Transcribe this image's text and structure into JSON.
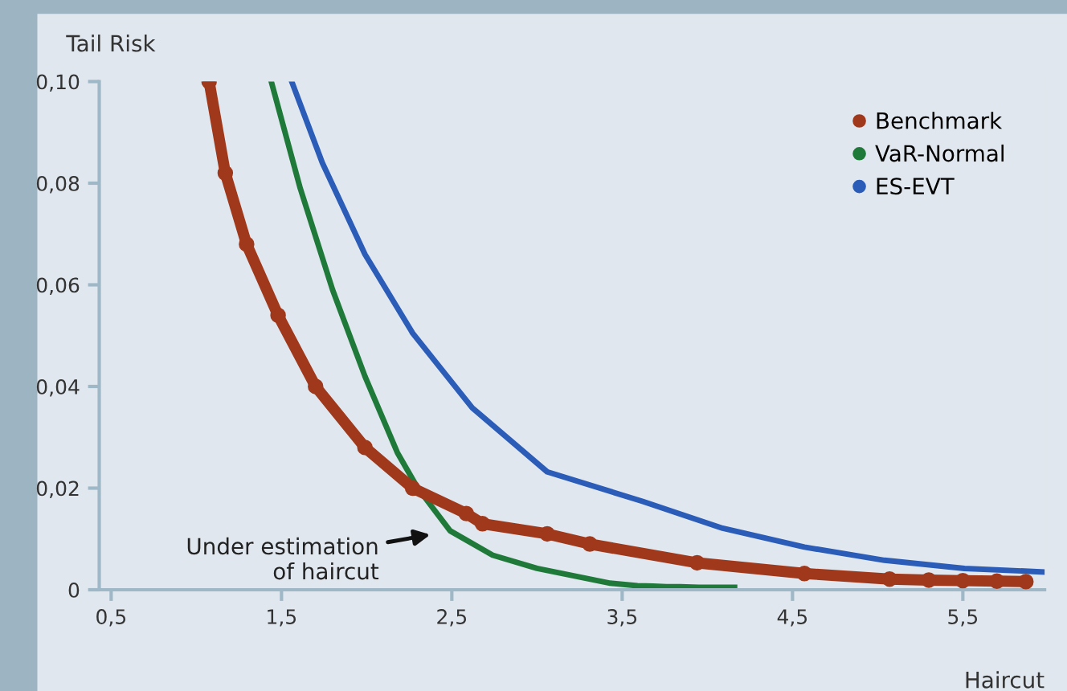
{
  "chart_data": {
    "type": "line",
    "xlabel": "Haircut",
    "ylabel": "Tail Risk",
    "xlim": [
      0.43,
      5.98
    ],
    "ylim": [
      0,
      0.1
    ],
    "xticks": [
      {
        "value": 0.5,
        "label": "0,5"
      },
      {
        "value": 1.5,
        "label": "1,5"
      },
      {
        "value": 2.5,
        "label": "2,5"
      },
      {
        "value": 3.5,
        "label": "3,5"
      },
      {
        "value": 4.5,
        "label": "4,5"
      },
      {
        "value": 5.5,
        "label": "5,5"
      }
    ],
    "yticks": [
      0,
      {
        "value": 0.02,
        "label": "0,02"
      },
      {
        "value": 0.04,
        "label": "0,04"
      },
      {
        "value": 0.06,
        "label": "0,06"
      },
      {
        "value": 0.08,
        "label": "0,08"
      },
      {
        "value": 0.1,
        "label": "0,10"
      }
    ],
    "grid": false,
    "legend": "top right",
    "annotations": [
      "Under estimation\nof haircut"
    ],
    "series": [
      {
        "name": "Benchmark",
        "color": "#a0391c",
        "marker": "circle",
        "x": [
          1.075,
          1.17,
          1.295,
          1.48,
          1.7,
          1.99,
          2.27,
          2.585,
          2.68,
          3.06,
          3.31,
          3.94,
          4.57,
          5.07,
          5.3,
          5.5,
          5.7,
          5.87
        ],
        "values": [
          0.1,
          0.082,
          0.068,
          0.054,
          0.04,
          0.028,
          0.02,
          0.015,
          0.013,
          0.011,
          0.009,
          0.0053,
          0.0032,
          0.0021,
          0.0019,
          0.0018,
          0.0017,
          0.0016
        ]
      },
      {
        "name": "VaR-Normal",
        "color": "#1f7a3a",
        "x": [
          1.44,
          1.61,
          1.8,
          1.99,
          2.18,
          2.3,
          2.49,
          2.74,
          3.0,
          3.43,
          3.59,
          3.68,
          3.76,
          3.84,
          3.95,
          4.16
        ],
        "values": [
          0.1,
          0.079,
          0.059,
          0.042,
          0.027,
          0.02,
          0.0116,
          0.0068,
          0.0042,
          0.0013,
          0.0008,
          0.0007,
          0.0006,
          0.0006,
          0.0005,
          0.0005
        ]
      },
      {
        "name": "ES-EVT",
        "color": "#2a5cb8",
        "x": [
          1.56,
          1.74,
          1.99,
          2.27,
          2.62,
          3.06,
          3.62,
          4.09,
          4.57,
          5.04,
          5.51,
          5.98
        ],
        "values": [
          0.1,
          0.084,
          0.066,
          0.0505,
          0.0358,
          0.0232,
          0.0174,
          0.0121,
          0.0084,
          0.0058,
          0.0042,
          0.0035
        ]
      }
    ]
  }
}
